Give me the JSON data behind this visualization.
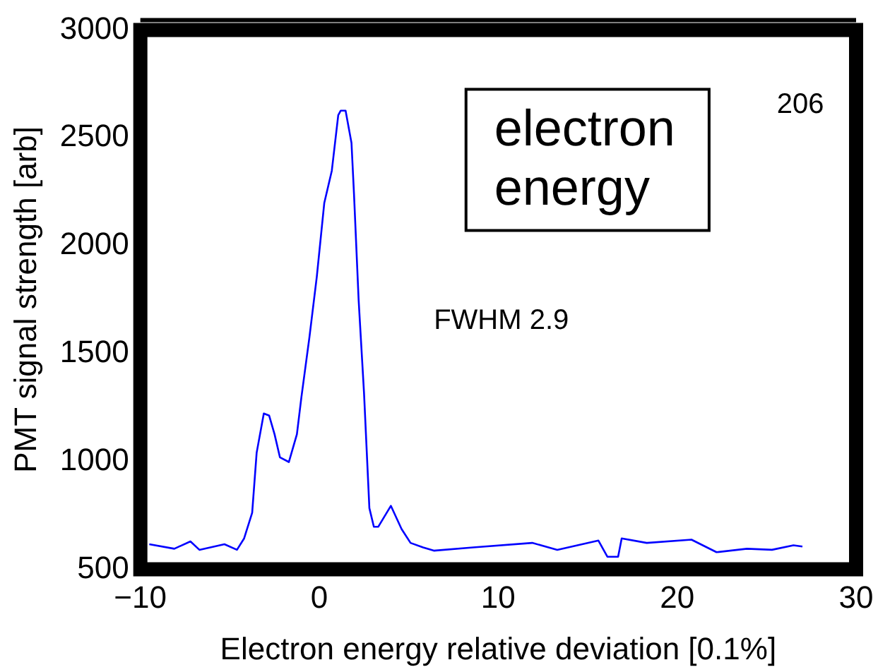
{
  "chart_data": {
    "type": "line",
    "xlabel": "Electron energy relative deviation [0.1%]",
    "ylabel": "PMT signal strength [arb]",
    "annotations": [
      "electron\nenergy",
      "FWHM 2.9",
      "206"
    ],
    "x": [
      -9.5,
      -8.1,
      -7.2,
      -6.7,
      -5.3,
      -4.6,
      -4.2,
      -3.75,
      -3.5,
      -3.1,
      -2.8,
      -2.5,
      -2.2,
      -1.7,
      -1.25,
      -1.0,
      -0.55,
      -0.14,
      0.28,
      0.7,
      1.06,
      1.2,
      1.47,
      1.8,
      1.94,
      2.2,
      2.5,
      2.8,
      3.05,
      3.3,
      4.0,
      4.6,
      5.1,
      5.8,
      6.4,
      8.6,
      11.9,
      13.3,
      15.6,
      16.1,
      16.7,
      16.9,
      18.3,
      20.8,
      22.2,
      23.9,
      25.3,
      26.5,
      27.0
    ],
    "series": [
      {
        "color": "#0000ff",
        "values": [
          616,
          595,
          629,
          590,
          616,
          590,
          643,
          762,
          1040,
          1222,
          1212,
          1126,
          1019,
          997,
          1126,
          1297,
          1576,
          1855,
          2198,
          2347,
          2605,
          2626,
          2626,
          2476,
          2240,
          1747,
          1318,
          783,
          697,
          697,
          794,
          686,
          622,
          601,
          586,
          601,
          622,
          590,
          633,
          558,
          558,
          643,
          622,
          637,
          579,
          595,
          590,
          611,
          605
        ]
      }
    ],
    "xlim": [
      -10,
      30
    ],
    "xticks": [
      {
        "value": -10,
        "label": "−10"
      },
      0,
      10,
      20,
      30
    ],
    "ylim": [
      500,
      3000
    ],
    "yticks": [
      500,
      1000,
      1500,
      2000,
      2500,
      3000
    ],
    "grid": false,
    "legend": false,
    "marker": "none",
    "line_style": "solid"
  }
}
